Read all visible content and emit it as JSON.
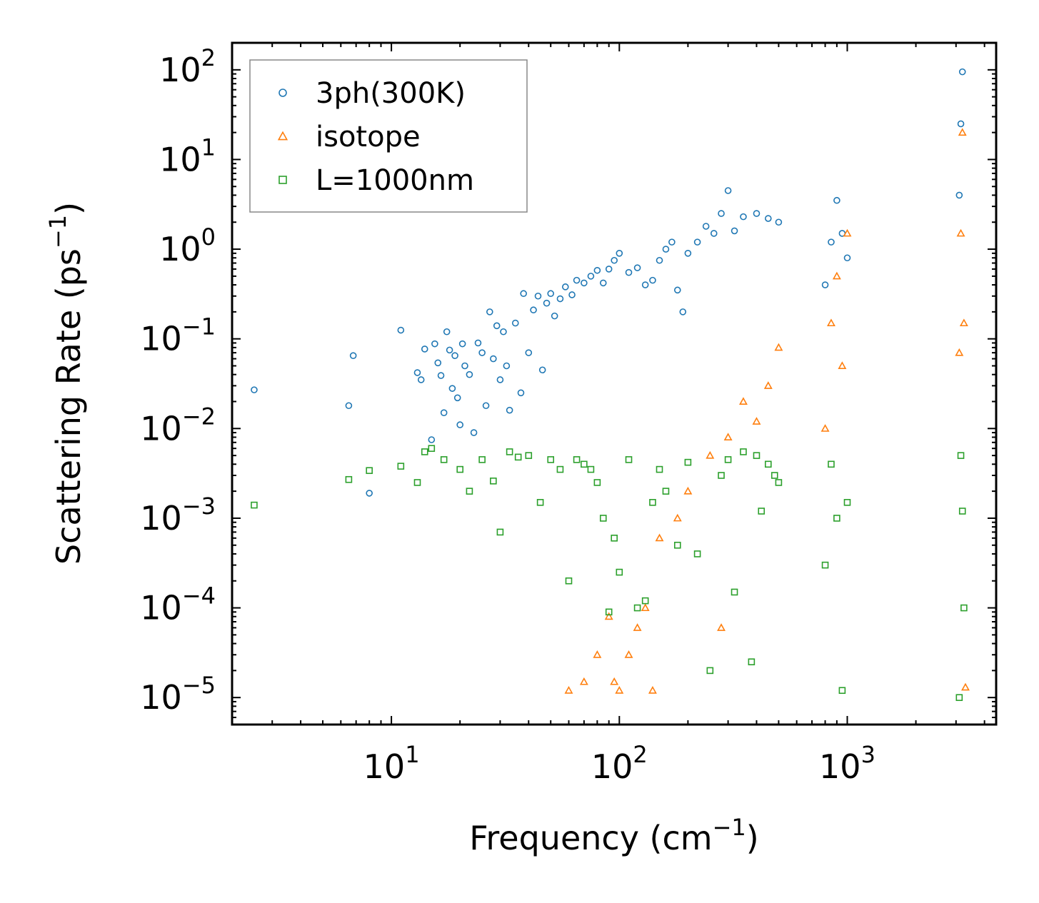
{
  "chart_data": {
    "type": "scatter",
    "title": "",
    "xlabel": "Frequency (cm",
    "xlabel_sup": "−1",
    "xlabel_end": ")",
    "ylabel": "Scattering Rate (ps",
    "ylabel_sup": "−1",
    "ylabel_end": ")",
    "xscale": "log",
    "yscale": "log",
    "xlim": [
      2,
      4500
    ],
    "ylim": [
      5e-06,
      200
    ],
    "legend_position": "top-left",
    "x_ticks": [
      {
        "value": 10,
        "base": "10",
        "exp": "1"
      },
      {
        "value": 100,
        "base": "10",
        "exp": "2"
      },
      {
        "value": 1000,
        "base": "10",
        "exp": "3"
      }
    ],
    "y_ticks": [
      {
        "value": 1e-05,
        "base": "10",
        "exp": "−5"
      },
      {
        "value": 0.0001,
        "base": "10",
        "exp": "−4"
      },
      {
        "value": 0.001,
        "base": "10",
        "exp": "−3"
      },
      {
        "value": 0.01,
        "base": "10",
        "exp": "−2"
      },
      {
        "value": 0.1,
        "base": "10",
        "exp": "−1"
      },
      {
        "value": 1,
        "base": "10",
        "exp": "0"
      },
      {
        "value": 10,
        "base": "10",
        "exp": "1"
      },
      {
        "value": 100,
        "base": "10",
        "exp": "2"
      }
    ],
    "series": [
      {
        "name": "3ph(300K)",
        "marker": "circle",
        "color": "#1f77b4",
        "points": [
          [
            2.5,
            0.027
          ],
          [
            6.5,
            0.018
          ],
          [
            6.8,
            0.065
          ],
          [
            8,
            0.0019
          ],
          [
            11,
            0.125
          ],
          [
            13,
            0.042
          ],
          [
            13.5,
            0.035
          ],
          [
            14,
            0.077
          ],
          [
            15,
            0.0075
          ],
          [
            15.5,
            0.088
          ],
          [
            16,
            0.054
          ],
          [
            16.5,
            0.039
          ],
          [
            17,
            0.015
          ],
          [
            17.5,
            0.12
          ],
          [
            18,
            0.075
          ],
          [
            18.5,
            0.028
          ],
          [
            19,
            0.065
          ],
          [
            19.5,
            0.022
          ],
          [
            20,
            0.011
          ],
          [
            20.5,
            0.088
          ],
          [
            21,
            0.05
          ],
          [
            22,
            0.04
          ],
          [
            23,
            0.009
          ],
          [
            24,
            0.09
          ],
          [
            25,
            0.07
          ],
          [
            26,
            0.018
          ],
          [
            27,
            0.2
          ],
          [
            28,
            0.06
          ],
          [
            29,
            0.14
          ],
          [
            30,
            0.035
          ],
          [
            31,
            0.12
          ],
          [
            32,
            0.05
          ],
          [
            33,
            0.016
          ],
          [
            35,
            0.15
          ],
          [
            37,
            0.025
          ],
          [
            38,
            0.32
          ],
          [
            40,
            0.07
          ],
          [
            42,
            0.21
          ],
          [
            44,
            0.3
          ],
          [
            46,
            0.045
          ],
          [
            48,
            0.25
          ],
          [
            50,
            0.32
          ],
          [
            52,
            0.18
          ],
          [
            55,
            0.28
          ],
          [
            58,
            0.38
          ],
          [
            62,
            0.31
          ],
          [
            65,
            0.45
          ],
          [
            70,
            0.42
          ],
          [
            75,
            0.5
          ],
          [
            80,
            0.58
          ],
          [
            85,
            0.42
          ],
          [
            90,
            0.6
          ],
          [
            95,
            0.75
          ],
          [
            100,
            0.9
          ],
          [
            110,
            0.55
          ],
          [
            120,
            0.62
          ],
          [
            130,
            0.4
          ],
          [
            140,
            0.45
          ],
          [
            150,
            0.75
          ],
          [
            160,
            1.0
          ],
          [
            170,
            1.2
          ],
          [
            180,
            0.35
          ],
          [
            190,
            0.2
          ],
          [
            200,
            0.9
          ],
          [
            220,
            1.2
          ],
          [
            240,
            1.8
          ],
          [
            260,
            1.5
          ],
          [
            280,
            2.5
          ],
          [
            300,
            4.5
          ],
          [
            320,
            1.6
          ],
          [
            350,
            2.3
          ],
          [
            400,
            2.5
          ],
          [
            450,
            2.2
          ],
          [
            500,
            2.0
          ],
          [
            800,
            0.4
          ],
          [
            850,
            1.2
          ],
          [
            900,
            3.5
          ],
          [
            950,
            1.5
          ],
          [
            1000,
            0.8
          ],
          [
            3100,
            4.0
          ],
          [
            3150,
            25
          ],
          [
            3200,
            95
          ]
        ]
      },
      {
        "name": "isotope",
        "marker": "triangle",
        "color": "#ff7f0e",
        "points": [
          [
            60,
            1.2e-05
          ],
          [
            70,
            1.5e-05
          ],
          [
            80,
            3e-05
          ],
          [
            90,
            8e-05
          ],
          [
            95,
            1.5e-05
          ],
          [
            100,
            1.2e-05
          ],
          [
            110,
            3e-05
          ],
          [
            120,
            6e-05
          ],
          [
            130,
            0.0001
          ],
          [
            140,
            1.2e-05
          ],
          [
            150,
            0.0006
          ],
          [
            180,
            0.001
          ],
          [
            200,
            0.002
          ],
          [
            250,
            0.005
          ],
          [
            280,
            6e-05
          ],
          [
            300,
            0.008
          ],
          [
            350,
            0.02
          ],
          [
            400,
            0.012
          ],
          [
            450,
            0.03
          ],
          [
            500,
            0.08
          ],
          [
            800,
            0.01
          ],
          [
            850,
            0.15
          ],
          [
            900,
            0.5
          ],
          [
            950,
            0.05
          ],
          [
            1000,
            1.5
          ],
          [
            3100,
            0.07
          ],
          [
            3150,
            1.5
          ],
          [
            3200,
            20
          ],
          [
            3250,
            0.15
          ],
          [
            3300,
            1.3e-05
          ]
        ]
      },
      {
        "name": "L=1000nm",
        "marker": "square",
        "color": "#2ca02c",
        "points": [
          [
            2.5,
            0.0014
          ],
          [
            6.5,
            0.0027
          ],
          [
            8,
            0.0034
          ],
          [
            11,
            0.0038
          ],
          [
            13,
            0.0025
          ],
          [
            14,
            0.0055
          ],
          [
            15,
            0.006
          ],
          [
            17,
            0.0045
          ],
          [
            20,
            0.0035
          ],
          [
            22,
            0.002
          ],
          [
            25,
            0.0045
          ],
          [
            28,
            0.0026
          ],
          [
            30,
            0.0007
          ],
          [
            33,
            0.0055
          ],
          [
            36,
            0.0048
          ],
          [
            40,
            0.005
          ],
          [
            45,
            0.0015
          ],
          [
            50,
            0.0045
          ],
          [
            55,
            0.0035
          ],
          [
            60,
            0.0002
          ],
          [
            65,
            0.0045
          ],
          [
            70,
            0.004
          ],
          [
            75,
            0.0035
          ],
          [
            80,
            0.0025
          ],
          [
            85,
            0.001
          ],
          [
            90,
            9e-05
          ],
          [
            95,
            0.0006
          ],
          [
            100,
            0.00025
          ],
          [
            110,
            0.0045
          ],
          [
            120,
            0.0001
          ],
          [
            130,
            0.00012
          ],
          [
            140,
            0.0015
          ],
          [
            150,
            0.0035
          ],
          [
            160,
            0.002
          ],
          [
            180,
            0.0005
          ],
          [
            200,
            0.0042
          ],
          [
            220,
            0.0004
          ],
          [
            250,
            2e-05
          ],
          [
            280,
            0.003
          ],
          [
            300,
            0.0045
          ],
          [
            320,
            0.00015
          ],
          [
            350,
            0.0055
          ],
          [
            380,
            2.5e-05
          ],
          [
            400,
            0.005
          ],
          [
            420,
            0.0012
          ],
          [
            450,
            0.004
          ],
          [
            480,
            0.003
          ],
          [
            500,
            0.0025
          ],
          [
            800,
            0.0003
          ],
          [
            850,
            0.004
          ],
          [
            900,
            0.001
          ],
          [
            950,
            1.2e-05
          ],
          [
            1000,
            0.0015
          ],
          [
            3100,
            1e-05
          ],
          [
            3150,
            0.005
          ],
          [
            3200,
            0.0012
          ],
          [
            3250,
            0.0001
          ]
        ]
      }
    ]
  }
}
